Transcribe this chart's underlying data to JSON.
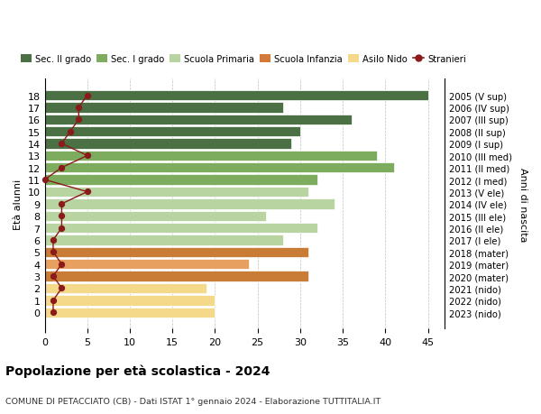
{
  "ages": [
    18,
    17,
    16,
    15,
    14,
    13,
    12,
    11,
    10,
    9,
    8,
    7,
    6,
    5,
    4,
    3,
    2,
    1,
    0
  ],
  "values": [
    45,
    28,
    36,
    30,
    29,
    39,
    41,
    32,
    31,
    34,
    26,
    32,
    28,
    31,
    24,
    31,
    19,
    20,
    20
  ],
  "stranieri": [
    5,
    4,
    4,
    3,
    2,
    5,
    2,
    0,
    5,
    2,
    2,
    2,
    1,
    1,
    2,
    1,
    2,
    1,
    1
  ],
  "right_labels": [
    "2005 (V sup)",
    "2006 (IV sup)",
    "2007 (III sup)",
    "2008 (II sup)",
    "2009 (I sup)",
    "2010 (III med)",
    "2011 (II med)",
    "2012 (I med)",
    "2013 (V ele)",
    "2014 (IV ele)",
    "2015 (III ele)",
    "2016 (II ele)",
    "2017 (I ele)",
    "2018 (mater)",
    "2019 (mater)",
    "2020 (mater)",
    "2021 (nido)",
    "2022 (nido)",
    "2023 (nido)"
  ],
  "bar_colors": [
    "#4a7043",
    "#4a7043",
    "#4a7043",
    "#4a7043",
    "#4a7043",
    "#7dac5e",
    "#7dac5e",
    "#7dac5e",
    "#b8d4a0",
    "#b8d4a0",
    "#b8d4a0",
    "#b8d4a0",
    "#b8d4a0",
    "#c87c35",
    "#e8a060",
    "#c87c35",
    "#f5d98a",
    "#f5d98a",
    "#f5d98a"
  ],
  "title": "Popolazione per età scolastica - 2024",
  "subtitle": "COMUNE DI PETACCIATO (CB) - Dati ISTAT 1° gennaio 2024 - Elaborazione TUTTITALIA.IT",
  "ylabel": "Età alunni",
  "right_ylabel": "Anni di nascita",
  "xlim": [
    0,
    47
  ],
  "xticks": [
    0,
    5,
    10,
    15,
    20,
    25,
    30,
    35,
    40,
    45
  ],
  "legend_items": [
    {
      "label": "Sec. II grado",
      "color": "#4a7043"
    },
    {
      "label": "Sec. I grado",
      "color": "#7dac5e"
    },
    {
      "label": "Scuola Primaria",
      "color": "#b8d4a0"
    },
    {
      "label": "Scuola Infanzia",
      "color": "#d4793a"
    },
    {
      "label": "Asilo Nido",
      "color": "#f5d98a"
    },
    {
      "label": "Stranieri",
      "color": "#8b1a1a"
    }
  ]
}
